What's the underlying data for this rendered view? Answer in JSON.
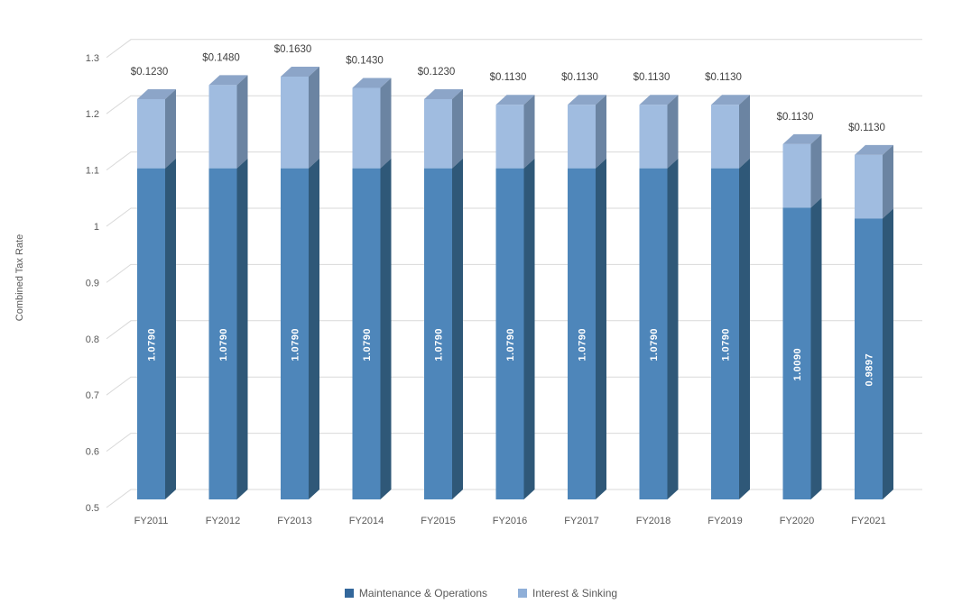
{
  "chart_data": {
    "type": "bar",
    "stacked": true,
    "threeD": true,
    "title": "",
    "xlabel": "",
    "ylabel": "Combined Tax Rate",
    "ylim": [
      0.5,
      1.3
    ],
    "grid": true,
    "legend_position": "bottom",
    "categories": [
      "FY2011",
      "FY2012",
      "FY2013",
      "FY2014",
      "FY2015",
      "FY2016",
      "FY2017",
      "FY2018",
      "FY2019",
      "FY2020",
      "FY2021"
    ],
    "series": [
      {
        "name": "Maintenance & Operations",
        "color": "#4E86BA",
        "side_color": "#2F5878",
        "values": [
          1.079,
          1.079,
          1.079,
          1.079,
          1.079,
          1.079,
          1.079,
          1.079,
          1.079,
          1.009,
          0.9897
        ]
      },
      {
        "name": "Interest & Sinking",
        "color": "#A0BCE0",
        "side_color": "#6B84A2",
        "top_color": "#8CA5C8",
        "values": [
          0.123,
          0.148,
          0.163,
          0.143,
          0.123,
          0.113,
          0.113,
          0.113,
          0.113,
          0.113,
          0.113
        ]
      }
    ],
    "inner_labels": [
      "1.0790",
      "1.0790",
      "1.0790",
      "1.0790",
      "1.0790",
      "1.0790",
      "1.0790",
      "1.0790",
      "1.0790",
      "1.0090",
      "0.9897"
    ],
    "data_labels": [
      "$0.1230",
      "$0.1480",
      "$0.1630",
      "$0.1430",
      "$0.1230",
      "$0.1130",
      "$0.1130",
      "$0.1130",
      "$0.1130",
      "$0.1130",
      "$0.1130"
    ],
    "yticks": [
      "0.5",
      "0.6",
      "0.7",
      "0.8",
      "0.9",
      "1",
      "1.1",
      "1.2",
      "1.3"
    ],
    "ytick_values": [
      0.5,
      0.6,
      0.7,
      0.8,
      0.9,
      1.0,
      1.1,
      1.2,
      1.3
    ],
    "colors": {
      "gridline": "#D9D9D9",
      "axis_text": "#595959",
      "data_label_text": "#404040",
      "inner_label_text": "#FFFFFF",
      "legend_marker_mo": "#33679B",
      "legend_marker_is": "#8FAFD8"
    }
  }
}
